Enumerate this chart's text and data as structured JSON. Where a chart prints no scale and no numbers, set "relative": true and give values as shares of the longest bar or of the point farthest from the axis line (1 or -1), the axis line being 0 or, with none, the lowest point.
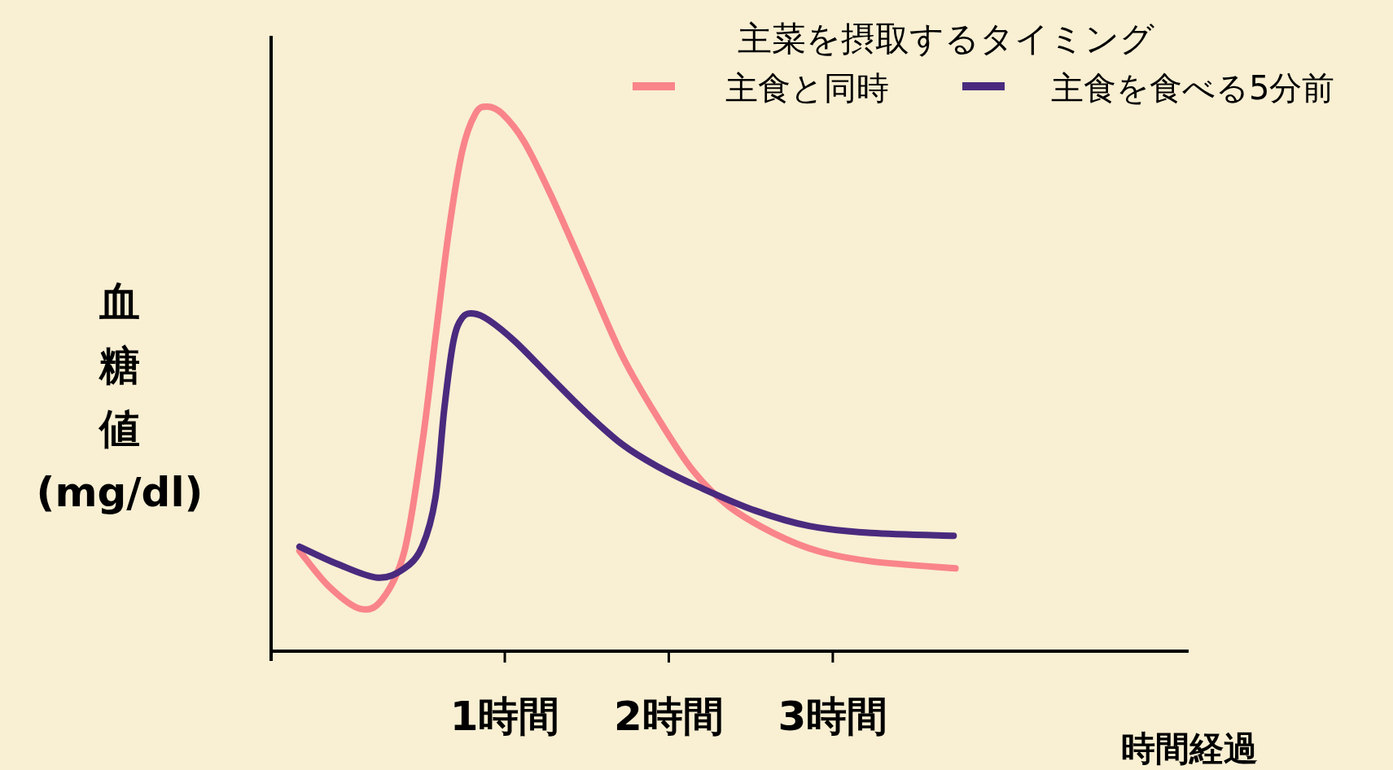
{
  "chart_data": {
    "type": "line",
    "relative": true,
    "xlabel": "時間経過",
    "ylabel": "血糖値(mg/dl)",
    "legend_title": "主菜を摂取するタイミング",
    "legend": "top right",
    "xlim": [
      -0.425,
      5.17
    ],
    "xticks": [
      {
        "value": 1,
        "label": "1時間"
      },
      {
        "value": 2,
        "label": "2時間"
      },
      {
        "value": 3,
        "label": "3時間"
      }
    ],
    "series": [
      {
        "name": "主食と同時",
        "color": "#f9848a",
        "x": [
          -0.252,
          -0.073,
          0.117,
          0.252,
          0.388,
          0.496,
          0.577,
          0.659,
          0.74,
          0.821,
          0.892,
          0.984,
          1.119,
          1.282,
          1.499,
          1.715,
          1.932,
          2.149,
          2.366,
          2.637,
          2.908,
          3.233,
          3.748
        ],
        "values": [
          0.184,
          0.119,
          0.078,
          0.095,
          0.184,
          0.38,
          0.576,
          0.772,
          0.918,
          0.987,
          1,
          0.987,
          0.935,
          0.837,
          0.69,
          0.543,
          0.429,
          0.331,
          0.266,
          0.217,
          0.184,
          0.165,
          0.152
        ]
      },
      {
        "name": "主食を食べる5分前",
        "color": "#4a2a7e",
        "x": [
          -0.252,
          -0.019,
          0.225,
          0.388,
          0.496,
          0.577,
          0.631,
          0.686,
          0.74,
          0.81,
          0.902,
          1.065,
          1.282,
          1.499,
          1.715,
          1.932,
          2.203,
          2.528,
          2.854,
          3.233,
          3.737
        ],
        "values": [
          0.192,
          0.16,
          0.135,
          0.152,
          0.192,
          0.282,
          0.445,
          0.568,
          0.612,
          0.62,
          0.608,
          0.568,
          0.502,
          0.437,
          0.38,
          0.339,
          0.299,
          0.258,
          0.23,
          0.217,
          0.212
        ]
      }
    ]
  }
}
